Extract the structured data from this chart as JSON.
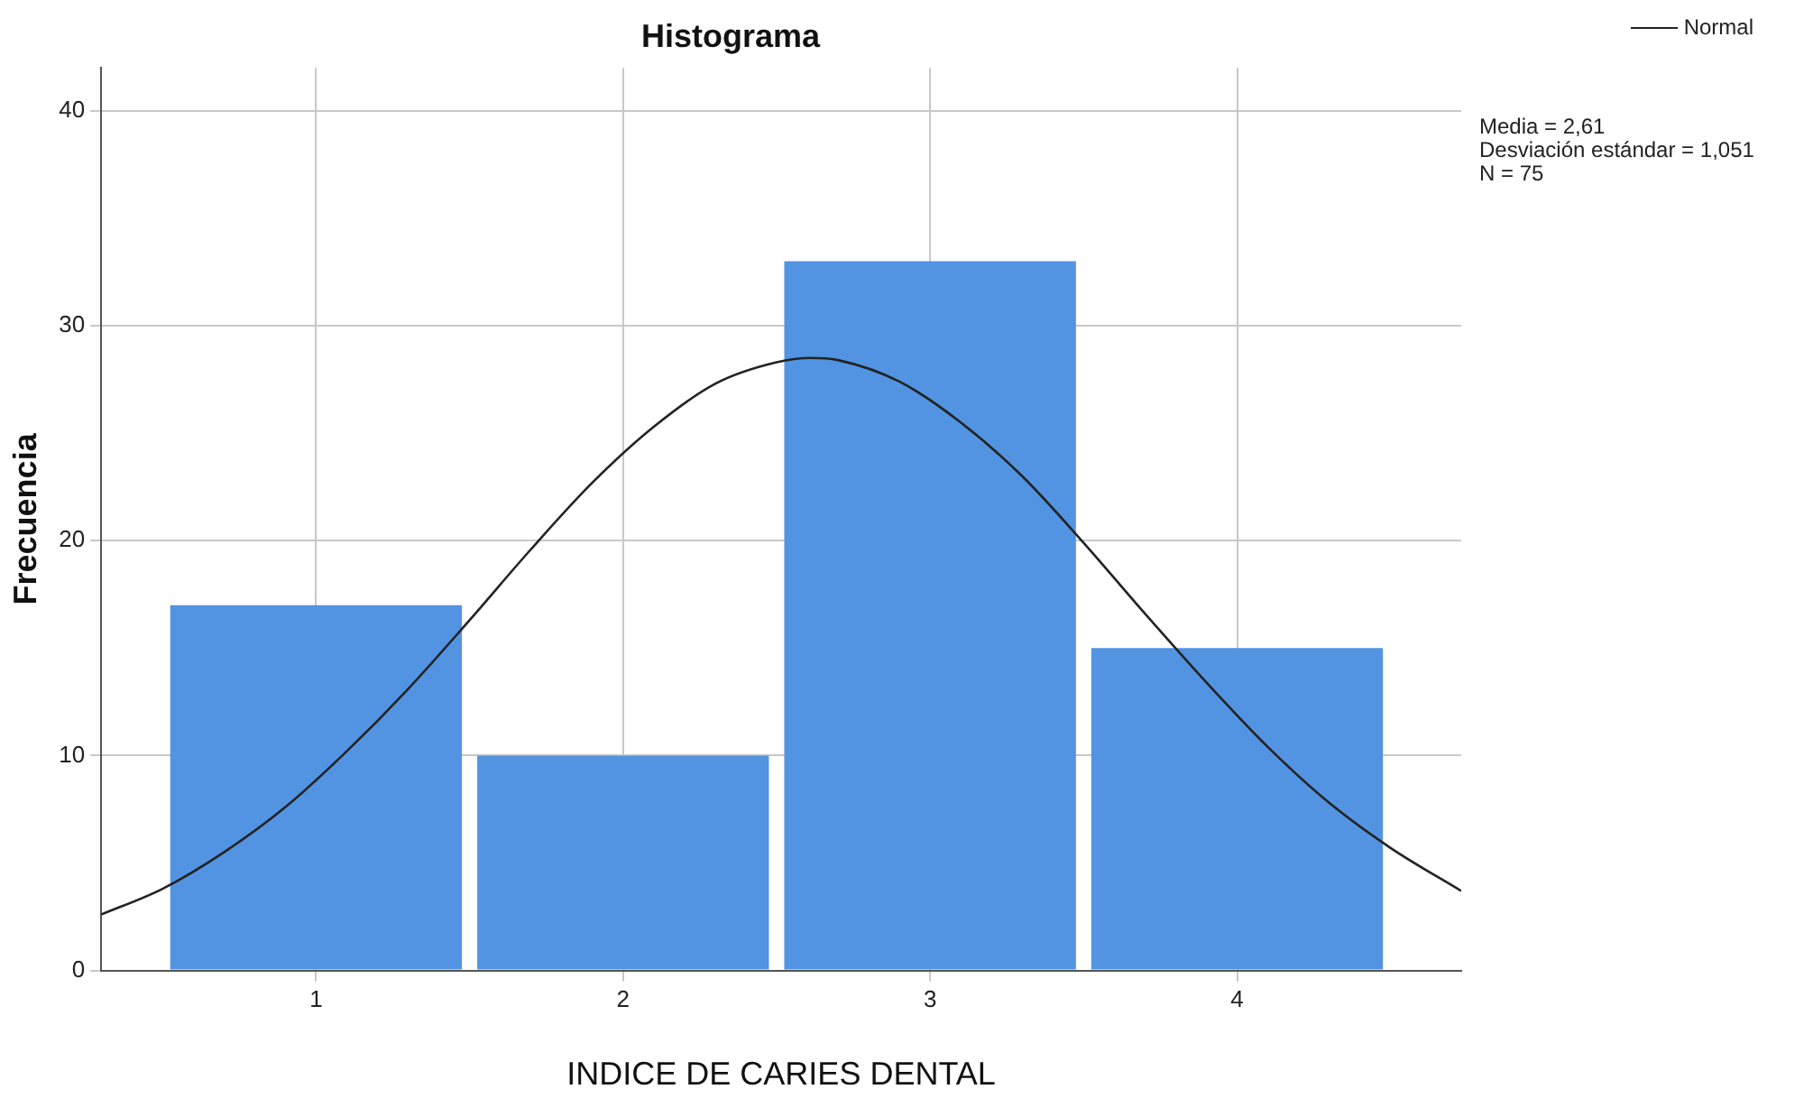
{
  "chart_data": {
    "type": "histogram",
    "title": "Histograma",
    "xlabel": "INDICE DE CARIES DENTAL",
    "ylabel": "Frecuencia",
    "bins": [
      0.5,
      1.5,
      2.5,
      3.5,
      4.5
    ],
    "values": [
      17,
      10,
      33,
      15
    ],
    "color": "#5294e2",
    "series": [
      {
        "name": "Normal",
        "type": "line",
        "color": "#222222",
        "x": [
          0.3,
          0.5,
          0.7,
          0.9,
          1.1,
          1.3,
          1.5,
          1.7,
          1.9,
          2.1,
          2.3,
          2.5,
          2.61,
          2.7,
          2.9,
          3.1,
          3.3,
          3.5,
          3.7,
          3.9,
          4.1,
          4.3,
          4.5,
          4.73
        ],
        "values": [
          2.6,
          3.8,
          5.5,
          7.6,
          10.2,
          13.1,
          16.3,
          19.6,
          22.7,
          25.3,
          27.3,
          28.3,
          28.5,
          28.4,
          27.4,
          25.5,
          23.0,
          19.9,
          16.6,
          13.4,
          10.4,
          7.8,
          5.7,
          3.7
        ]
      }
    ],
    "xlim": [
      0.3,
      4.73
    ],
    "xticks": [
      1,
      2,
      3,
      4
    ],
    "ylim": [
      0,
      42
    ],
    "yticks": [
      0,
      10,
      20,
      30,
      40
    ],
    "grid": true,
    "legend": "top right",
    "marker": "none",
    "annotations": [
      "Media = 2,61",
      "Desviación estándar = 1,051",
      "N = 75"
    ]
  }
}
